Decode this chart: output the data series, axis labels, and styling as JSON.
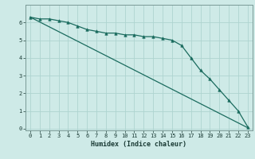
{
  "xlabel": "Humidex (Indice chaleur)",
  "background_color": "#ceeae7",
  "grid_color": "#aed4d0",
  "line_color": "#1a6b5e",
  "x_data": [
    0,
    1,
    2,
    3,
    4,
    5,
    6,
    7,
    8,
    9,
    10,
    11,
    12,
    13,
    14,
    15,
    16,
    17,
    18,
    19,
    20,
    21,
    22,
    23
  ],
  "y_data": [
    6.3,
    6.2,
    6.2,
    6.1,
    6.0,
    5.8,
    5.6,
    5.5,
    5.4,
    5.4,
    5.3,
    5.3,
    5.2,
    5.2,
    5.1,
    5.0,
    4.7,
    4.0,
    3.3,
    2.8,
    2.2,
    1.6,
    1.0,
    0.1
  ],
  "y_smooth_start": 6.3,
  "y_smooth_end": 0.05,
  "xlim": [
    -0.5,
    23.5
  ],
  "ylim": [
    -0.1,
    7.0
  ],
  "yticks": [
    0,
    1,
    2,
    3,
    4,
    5,
    6
  ],
  "xticks": [
    0,
    1,
    2,
    3,
    4,
    5,
    6,
    7,
    8,
    9,
    10,
    11,
    12,
    13,
    14,
    15,
    16,
    17,
    18,
    19,
    20,
    21,
    22,
    23
  ],
  "tick_fontsize": 5.0,
  "xlabel_fontsize": 6.0
}
